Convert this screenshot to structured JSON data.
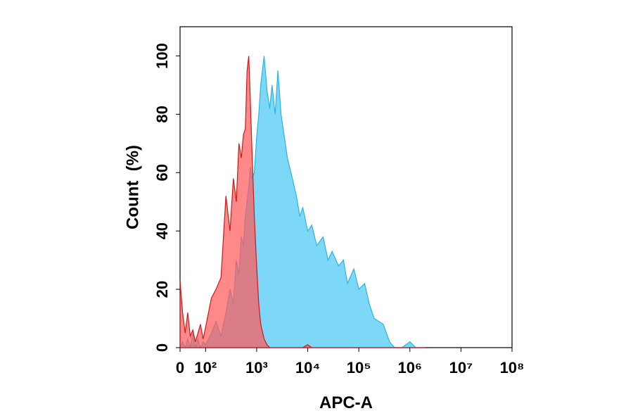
{
  "chart_data": {
    "type": "area",
    "xlabel": "APC-A",
    "ylabel": "Count  (%)",
    "xscale": "biexponential",
    "xlim": [
      0,
      100000000
    ],
    "ylim": [
      0,
      110
    ],
    "xticks": [
      0,
      {
        "value": 100,
        "label": "10²"
      },
      {
        "value": 1000,
        "label": "10³"
      },
      {
        "value": 10000,
        "label": "10⁴"
      },
      {
        "value": 100000,
        "label": "10⁵"
      },
      {
        "value": 1000000,
        "label": "10⁶"
      },
      {
        "value": 10000000,
        "label": "10⁷"
      },
      {
        "value": 100000000,
        "label": "10⁸"
      }
    ],
    "yticks": [
      0,
      20,
      40,
      60,
      80,
      100
    ],
    "x": [
      0,
      10,
      20,
      30,
      40,
      50,
      60,
      70,
      80,
      90,
      100,
      130,
      160,
      200,
      250,
      300,
      350,
      400,
      450,
      500,
      550,
      600,
      650,
      700,
      750,
      800,
      900,
      1000,
      1100,
      1200,
      1400,
      1600,
      1800,
      2000,
      2300,
      2600,
      3000,
      3500,
      4000,
      5000,
      6000,
      7000,
      8000,
      10000,
      12000,
      15000,
      20000,
      25000,
      30000,
      40000,
      50000,
      60000,
      80000,
      100000,
      130000,
      160000,
      200000,
      300000,
      400000,
      500000,
      700000,
      1000000,
      1300000,
      2000000
    ],
    "series": [
      {
        "color": "#2ab4e4",
        "fill": "#6fd3f5",
        "values": [
          0,
          2,
          0,
          3,
          0,
          5,
          0,
          3,
          0,
          2,
          1,
          5,
          9,
          4,
          12,
          20,
          15,
          30,
          25,
          38,
          35,
          45,
          50,
          55,
          62,
          58,
          60,
          72,
          80,
          90,
          100,
          88,
          82,
          90,
          80,
          95,
          80,
          72,
          65,
          58,
          52,
          45,
          48,
          40,
          42,
          35,
          38,
          30,
          33,
          28,
          30,
          22,
          27,
          20,
          22,
          15,
          10,
          8,
          2,
          0,
          0,
          2,
          0,
          0
        ]
      },
      {
        "color": "#d01818",
        "fill": "#ff5a5a",
        "values": [
          23,
          12,
          5,
          12,
          4,
          6,
          2,
          5,
          8,
          3,
          7,
          17,
          20,
          24,
          52,
          40,
          58,
          50,
          70,
          65,
          73,
          75,
          95,
          100,
          85,
          70,
          45,
          28,
          15,
          8,
          3,
          1,
          0,
          0,
          0,
          0,
          0,
          0,
          0,
          0,
          0,
          0,
          0,
          1,
          0,
          0,
          0,
          0,
          0,
          0,
          0,
          0,
          0,
          0,
          0,
          0,
          0,
          0,
          0,
          0,
          0,
          0,
          0,
          0
        ]
      }
    ]
  }
}
